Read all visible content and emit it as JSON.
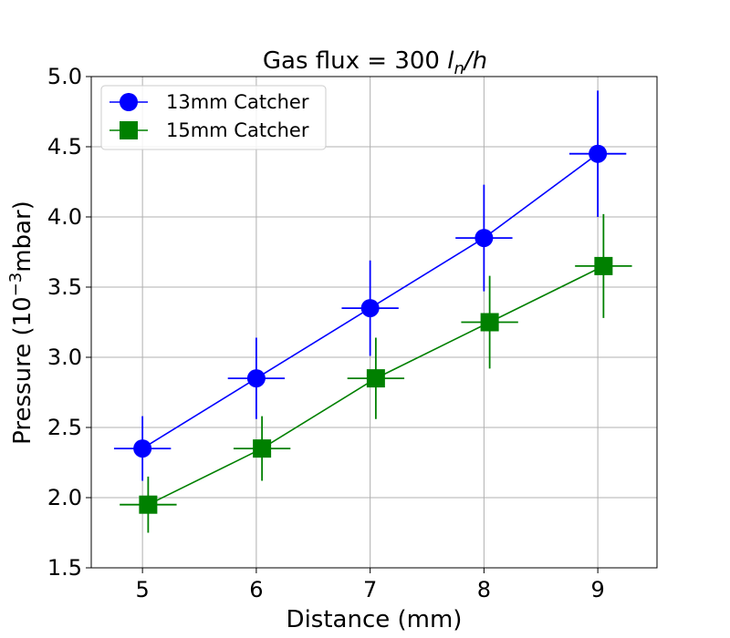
{
  "chart_data": {
    "type": "line",
    "title_main": "Gas flux = 300 ",
    "title_unit_base": "l",
    "title_unit_sub": "n",
    "title_unit_tail": "/h",
    "xlabel": "Distance (mm)",
    "ylabel_base": "Pressure (10",
    "ylabel_sup": "−3",
    "ylabel_tail": "mbar)",
    "xlim": [
      4.55,
      9.52
    ],
    "ylim": [
      1.5,
      5.0
    ],
    "x_ticks": [
      5,
      6,
      7,
      8,
      9
    ],
    "x_tick_labels": [
      "5",
      "6",
      "7",
      "8",
      "9"
    ],
    "y_ticks": [
      1.5,
      2.0,
      2.5,
      3.0,
      3.5,
      4.0,
      4.5,
      5.0
    ],
    "y_tick_labels": [
      "1.5",
      "2.0",
      "2.5",
      "3.0",
      "3.5",
      "4.0",
      "4.5",
      "5.0"
    ],
    "grid": true,
    "legend_position": "top-left",
    "series": [
      {
        "name": "13mm Catcher",
        "color": "#0000ff",
        "marker": "circle",
        "x": [
          5.0,
          6.0,
          7.0,
          8.0,
          9.0
        ],
        "y": [
          2.35,
          2.85,
          3.35,
          3.85,
          4.45
        ],
        "xerr": [
          0.25,
          0.25,
          0.25,
          0.25,
          0.25
        ],
        "yerr": [
          0.23,
          0.29,
          0.34,
          0.38,
          0.45
        ]
      },
      {
        "name": "15mm Catcher",
        "color": "#008000",
        "marker": "square",
        "x": [
          5.05,
          6.05,
          7.05,
          8.05,
          9.05
        ],
        "y": [
          1.95,
          2.35,
          2.85,
          3.25,
          3.65
        ],
        "xerr": [
          0.25,
          0.25,
          0.25,
          0.25,
          0.25
        ],
        "yerr": [
          0.2,
          0.23,
          0.29,
          0.33,
          0.37
        ]
      }
    ]
  }
}
